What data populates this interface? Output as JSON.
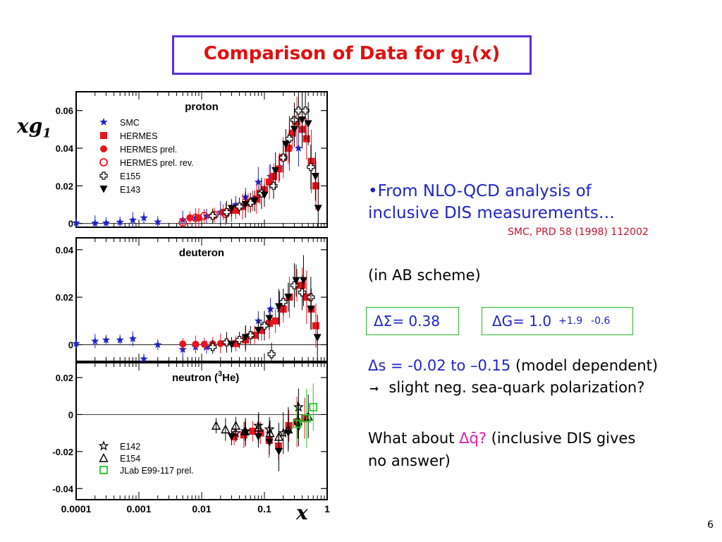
{
  "title": {
    "prefix": "Comparison of Data for g",
    "sub": "1",
    "suffix": "(x)"
  },
  "y_axis_label": {
    "main": "xg",
    "sub": "1"
  },
  "x_axis_label": "x",
  "bullet": {
    "line1": "•From NLO-QCD analysis of",
    "line2": "inclusive DIS measurements…",
    "ref": "SMC, PRD 58 (1998) 112002"
  },
  "scheme": "(in AB scheme)",
  "delta_sigma": "ΔΣ= 0.38",
  "delta_g": {
    "value": "ΔG= 1.0",
    "plus": "+1.9",
    "minus": "-0.6"
  },
  "delta_s": {
    "value": "Δs = -0.02 to –0.15",
    "note": "(model dependent)"
  },
  "arrow_line": "slight neg. sea-quark polarization?",
  "what_about": {
    "prefix": "What about ",
    "qbar": "Δq̄?",
    "suffix": " (inclusive DIS gives",
    "line2": "no answer)"
  },
  "page_number": "6",
  "colors": {
    "title": "#e01010",
    "blue_text": "#1f24c9",
    "red_ref": "#c8102e",
    "smc": "#1f24c9",
    "hermes": "#e8141e",
    "jlab": "#22cc22",
    "title_border": "#5b2fd6"
  },
  "chart_data": {
    "type": "scatter",
    "x_scale": "log",
    "x_tick_labels": [
      "0.0001",
      "0.001",
      "0.01",
      "0.1",
      "1"
    ],
    "xlim": [
      0.0001,
      1
    ],
    "panels": [
      {
        "name": "proton",
        "ylim": [
          -0.002,
          0.07
        ],
        "y_ticks": [
          0,
          0.02,
          0.04,
          0.06
        ],
        "y_tick_labels": [
          "0",
          "0.02",
          "0.04",
          "0.06"
        ],
        "legend": [
          {
            "label": "SMC",
            "marker": "star",
            "color": "#1f24c9"
          },
          {
            "label": "HERMES",
            "marker": "square",
            "color": "#e8141e"
          },
          {
            "label": "HERMES prel.",
            "marker": "circle",
            "color": "#e8141e"
          },
          {
            "label": "HERMES prel. rev.",
            "marker": "open-circle",
            "color": "#e8141e"
          },
          {
            "label": "E155",
            "marker": "open-cross",
            "color": "#000000"
          },
          {
            "label": "E143",
            "marker": "down-triangle",
            "color": "#000000"
          }
        ],
        "series": [
          {
            "name": "SMC",
            "points": [
              [
                0.0001,
                0.0003
              ],
              [
                0.0002,
                0.0002
              ],
              [
                0.0003,
                0.0003
              ],
              [
                0.0005,
                0.0007
              ],
              [
                0.0008,
                0.0018
              ],
              [
                0.0012,
                0.003
              ],
              [
                0.002,
                0.0008
              ],
              [
                0.005,
                0.002
              ],
              [
                0.008,
                0.003
              ],
              [
                0.012,
                0.004
              ],
              [
                0.02,
                0.006
              ],
              [
                0.035,
                0.01
              ],
              [
                0.05,
                0.014
              ],
              [
                0.08,
                0.022
              ],
              [
                0.125,
                0.025
              ],
              [
                0.175,
                0.03
              ],
              [
                0.25,
                0.04
              ],
              [
                0.35,
                0.04
              ]
            ]
          },
          {
            "name": "HERMES",
            "points": [
              [
                0.035,
                0.007
              ],
              [
                0.045,
                0.009
              ],
              [
                0.055,
                0.011
              ],
              [
                0.065,
                0.012
              ],
              [
                0.075,
                0.013
              ],
              [
                0.085,
                0.016
              ],
              [
                0.1,
                0.018
              ],
              [
                0.12,
                0.022
              ],
              [
                0.14,
                0.025
              ],
              [
                0.17,
                0.029
              ],
              [
                0.2,
                0.035
              ],
              [
                0.24,
                0.04
              ],
              [
                0.28,
                0.048
              ],
              [
                0.33,
                0.054
              ],
              [
                0.4,
                0.05
              ],
              [
                0.47,
                0.045
              ],
              [
                0.56,
                0.033
              ],
              [
                0.66,
                0.02
              ]
            ]
          },
          {
            "name": "HERMES prel.",
            "points": [
              [
                0.0065,
                0.003
              ],
              [
                0.009,
                0.003
              ],
              [
                0.015,
                0.004
              ],
              [
                0.022,
                0.006
              ],
              [
                0.03,
                0.007
              ]
            ]
          },
          {
            "name": "HERMES prel. rev.",
            "points": [
              [
                0.005,
                0.0005
              ],
              [
                0.008,
                0.003
              ],
              [
                0.011,
                0.004
              ],
              [
                0.016,
                0.0045
              ],
              [
                0.024,
                0.005
              ]
            ]
          },
          {
            "name": "E155",
            "points": [
              [
                0.015,
                0.004
              ],
              [
                0.025,
                0.006
              ],
              [
                0.04,
                0.009
              ],
              [
                0.06,
                0.011
              ],
              [
                0.09,
                0.016
              ],
              [
                0.14,
                0.02
              ],
              [
                0.2,
                0.035
              ],
              [
                0.25,
                0.045
              ],
              [
                0.3,
                0.055
              ],
              [
                0.35,
                0.06
              ],
              [
                0.45,
                0.06
              ],
              [
                0.55,
                0.03
              ]
            ]
          },
          {
            "name": "E143",
            "points": [
              [
                0.03,
                0.008
              ],
              [
                0.05,
                0.01
              ],
              [
                0.07,
                0.012
              ],
              [
                0.1,
                0.015
              ],
              [
                0.15,
                0.028
              ],
              [
                0.22,
                0.042
              ],
              [
                0.3,
                0.05
              ],
              [
                0.4,
                0.055
              ],
              [
                0.5,
                0.053
              ],
              [
                0.65,
                0.025
              ],
              [
                0.72,
                0.008
              ]
            ]
          }
        ]
      },
      {
        "name": "deuteron",
        "ylim": [
          -0.007,
          0.045
        ],
        "y_ticks": [
          0,
          0.02,
          0.04
        ],
        "y_tick_labels": [
          "0",
          "0.02",
          "0.04"
        ],
        "series": [
          {
            "name": "SMC",
            "points": [
              [
                0.0001,
                0.0005
              ],
              [
                0.0002,
                0.0015
              ],
              [
                0.0003,
                0.002
              ],
              [
                0.0005,
                0.002
              ],
              [
                0.0008,
                0.0025
              ],
              [
                0.0012,
                -0.006
              ],
              [
                0.002,
                0.0
              ],
              [
                0.005,
                -0.002
              ],
              [
                0.008,
                -0.001
              ],
              [
                0.012,
                -0.001
              ],
              [
                0.05,
                0.003
              ],
              [
                0.08,
                0.01
              ],
              [
                0.125,
                0.015
              ],
              [
                0.175,
                0.015
              ],
              [
                0.25,
                0.02
              ]
            ]
          },
          {
            "name": "HERMES",
            "points": [
              [
                0.035,
                0.0005
              ],
              [
                0.05,
                0.002
              ],
              [
                0.07,
                0.004
              ],
              [
                0.09,
                0.006
              ],
              [
                0.12,
                0.009
              ],
              [
                0.15,
                0.01
              ],
              [
                0.2,
                0.015
              ],
              [
                0.25,
                0.02
              ],
              [
                0.33,
                0.025
              ],
              [
                0.4,
                0.025
              ],
              [
                0.47,
                0.02
              ],
              [
                0.56,
                0.015
              ],
              [
                0.66,
                0.008
              ]
            ]
          },
          {
            "name": "HERMES prel.",
            "points": [
              [
                0.005,
                0.0003
              ],
              [
                0.008,
                0.0002
              ],
              [
                0.011,
                0.0002
              ],
              [
                0.015,
                0.0003
              ],
              [
                0.02,
                0.0005
              ],
              [
                0.025,
                0.0008
              ]
            ]
          },
          {
            "name": "E155",
            "points": [
              [
                0.015,
                -0.001
              ],
              [
                0.025,
                0.001
              ],
              [
                0.04,
                0.002
              ],
              [
                0.06,
                0.004
              ],
              [
                0.1,
                0.008
              ],
              [
                0.13,
                -0.004
              ],
              [
                0.2,
                0.018
              ],
              [
                0.3,
                0.025
              ],
              [
                0.4,
                0.022
              ],
              [
                0.55,
                0.02
              ]
            ]
          },
          {
            "name": "E143",
            "points": [
              [
                0.03,
                0.0
              ],
              [
                0.05,
                0.003
              ],
              [
                0.08,
                0.006
              ],
              [
                0.12,
                0.011
              ],
              [
                0.17,
                0.016
              ],
              [
                0.24,
                0.02
              ],
              [
                0.32,
                0.027
              ],
              [
                0.42,
                0.027
              ],
              [
                0.55,
                0.015
              ],
              [
                0.7,
                0.003
              ]
            ]
          }
        ]
      },
      {
        "name": "neutron (3He)",
        "title_prefix": "neutron  (",
        "title_sup": "3",
        "title_suffix": "He)",
        "ylim": [
          -0.046,
          0.028
        ],
        "y_ticks": [
          -0.04,
          -0.02,
          0,
          0.02
        ],
        "y_tick_labels": [
          "-0.04",
          "-0.02",
          "0",
          "0.02"
        ],
        "legend": [
          {
            "label": "E142",
            "marker": "open-star",
            "color": "#000000"
          },
          {
            "label": "E154",
            "marker": "open-triangle",
            "color": "#000000"
          },
          {
            "label": "JLab E99-117 prel.",
            "marker": "open-square",
            "color": "#22cc22"
          }
        ],
        "series": [
          {
            "name": "HERMES",
            "points": [
              [
                0.033,
                -0.012
              ],
              [
                0.047,
                -0.011
              ],
              [
                0.065,
                -0.009
              ],
              [
                0.087,
                -0.01
              ],
              [
                0.119,
                -0.014
              ],
              [
                0.168,
                -0.017
              ],
              [
                0.245,
                -0.006
              ],
              [
                0.33,
                -0.004
              ],
              [
                0.44,
                -0.002
              ]
            ]
          },
          {
            "name": "E143",
            "points": [
              [
                0.03,
                -0.012
              ],
              [
                0.05,
                -0.01
              ],
              [
                0.08,
                -0.012
              ],
              [
                0.12,
                -0.015
              ],
              [
                0.17,
                -0.02
              ],
              [
                0.24,
                -0.01
              ],
              [
                0.35,
                -0.007
              ]
            ]
          },
          {
            "name": "E142",
            "points": [
              [
                0.035,
                -0.01
              ],
              [
                0.05,
                -0.009
              ],
              [
                0.08,
                -0.006
              ],
              [
                0.12,
                -0.008
              ],
              [
                0.2,
                -0.01
              ],
              [
                0.35,
                0.004
              ]
            ]
          },
          {
            "name": "E154",
            "points": [
              [
                0.017,
                -0.006
              ],
              [
                0.024,
                -0.008
              ],
              [
                0.035,
                -0.006
              ],
              [
                0.049,
                -0.009
              ],
              [
                0.081,
                -0.007
              ],
              [
                0.123,
                -0.01
              ],
              [
                0.17,
                -0.012
              ],
              [
                0.24,
                -0.008
              ],
              [
                0.34,
                -0.003
              ],
              [
                0.5,
                -0.001
              ]
            ]
          },
          {
            "name": "JLab E99-117 prel.",
            "points": [
              [
                0.33,
                -0.005
              ],
              [
                0.47,
                -0.002
              ],
              [
                0.6,
                0.004
              ]
            ]
          }
        ]
      }
    ]
  }
}
